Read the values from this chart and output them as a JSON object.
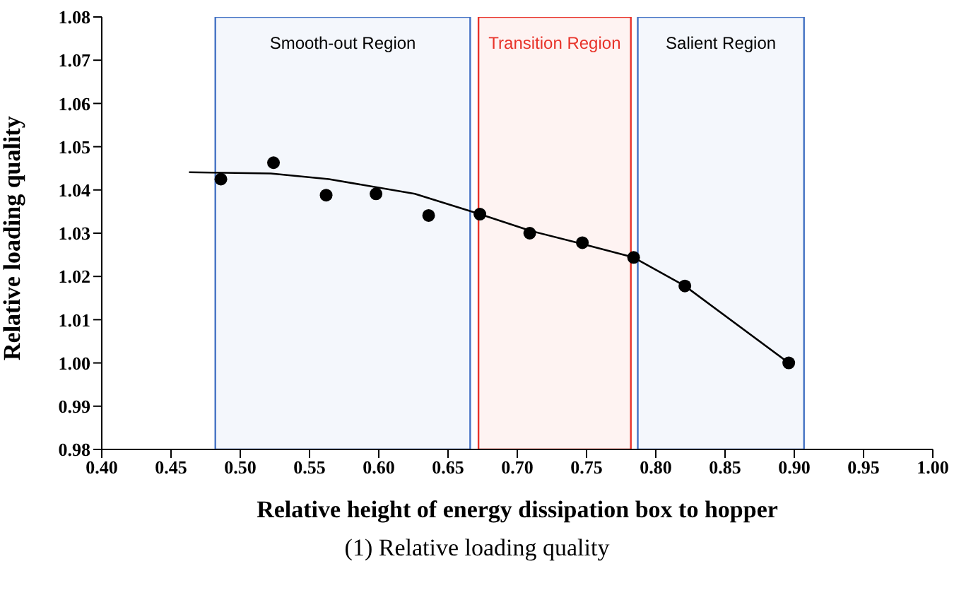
{
  "chart_data": {
    "type": "scatter",
    "xlabel": "Relative height of energy dissipation box to hopper",
    "ylabel": "Relative loading quality",
    "annotations": [
      "(1) Relative loading quality"
    ],
    "xlim": [
      0.4,
      1.0
    ],
    "ylim": [
      0.98,
      1.08
    ],
    "xticks": [
      {
        "value": 0.4,
        "label": "0.40"
      },
      {
        "value": 0.45,
        "label": "0.45"
      },
      {
        "value": 0.5,
        "label": "0.50"
      },
      {
        "value": 0.55,
        "label": "0.55"
      },
      {
        "value": 0.6,
        "label": "0.60"
      },
      {
        "value": 0.65,
        "label": "0.65"
      },
      {
        "value": 0.7,
        "label": "0.70"
      },
      {
        "value": 0.75,
        "label": "0.75"
      },
      {
        "value": 0.8,
        "label": "0.80"
      },
      {
        "value": 0.85,
        "label": "0.85"
      },
      {
        "value": 0.9,
        "label": "0.90"
      },
      {
        "value": 0.95,
        "label": "0.95"
      },
      {
        "value": 1.0,
        "label": "1.00"
      }
    ],
    "yticks": [
      {
        "value": 0.98,
        "label": "0.98"
      },
      {
        "value": 0.99,
        "label": "0.99"
      },
      {
        "value": 1.0,
        "label": "1.00"
      },
      {
        "value": 1.01,
        "label": "1.01"
      },
      {
        "value": 1.02,
        "label": "1.02"
      },
      {
        "value": 1.03,
        "label": "1.03"
      },
      {
        "value": 1.04,
        "label": "1.04"
      },
      {
        "value": 1.05,
        "label": "1.05"
      },
      {
        "value": 1.06,
        "label": "1.06"
      },
      {
        "value": 1.07,
        "label": "1.07"
      },
      {
        "value": 1.08,
        "label": "1.08"
      }
    ],
    "grid": false,
    "bands": [
      {
        "axis": "x",
        "from": 0.482,
        "to": 0.666,
        "label": "Smooth-out Region",
        "color": "#4472c4"
      },
      {
        "axis": "x",
        "from": 0.672,
        "to": 0.782,
        "label": "Transition Region",
        "color": "#e8332a"
      },
      {
        "axis": "x",
        "from": 0.787,
        "to": 0.907,
        "label": "Salient Region",
        "color": "#4472c4"
      }
    ],
    "series": [
      {
        "color": "#000000",
        "marker": "circle",
        "x": [
          0.486,
          0.524,
          0.562,
          0.598,
          0.636,
          0.673,
          0.709,
          0.747,
          0.784,
          0.821,
          0.896
        ],
        "values": [
          1.0425,
          1.0463,
          1.0388,
          1.0391,
          1.0341,
          1.0344,
          1.03,
          1.0278,
          1.0244,
          1.0178,
          1.0
        ]
      },
      {
        "type": "line",
        "color": "#000000",
        "marker": "none",
        "line_style": "solid",
        "x": [
          0.463,
          0.522,
          0.564,
          0.626,
          0.673,
          0.709,
          0.747,
          0.784,
          0.821,
          0.896
        ],
        "values": [
          1.0441,
          1.0438,
          1.0425,
          1.0391,
          1.0344,
          1.0306,
          1.0275,
          1.0244,
          1.0178,
          1.0
        ]
      }
    ]
  }
}
